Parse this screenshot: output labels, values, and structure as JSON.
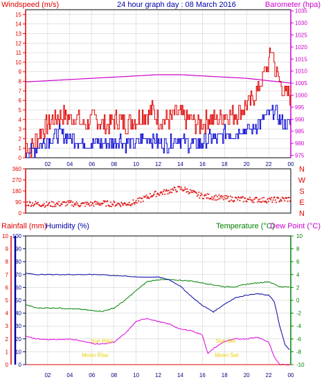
{
  "title": "24 hour graph day : 08 March 2016",
  "colors": {
    "wind": "#e00000",
    "gust": "#e00000",
    "avgwind": "#0000d0",
    "baro": "#cc00cc",
    "dir": "#e00000",
    "temp": "#008000",
    "hum": "#0000a0",
    "dew": "#dd00dd",
    "rain": "#e00000",
    "sun": "#e6d000",
    "moon": "#e6d000",
    "frame": "#000000",
    "grid": "#c8c8c8"
  },
  "chart_data": [
    {
      "type": "line",
      "name": "wind-baro",
      "left_label": "Windspeed (m/s)",
      "right_label": "Barometer (hpa)",
      "x_ticks": [
        "02",
        "04",
        "06",
        "08",
        "10",
        "12",
        "14",
        "16",
        "18",
        "20",
        "22",
        "00"
      ],
      "y_left_ticks": [
        0,
        1,
        2,
        3,
        4,
        5,
        6,
        7,
        8,
        9,
        10,
        11,
        12,
        13,
        14,
        15
      ],
      "y_left_range": [
        0,
        15.5
      ],
      "y_right_ticks": [
        975,
        980,
        985,
        990,
        995,
        1000,
        1005,
        1010,
        1015,
        1020,
        1025,
        1030,
        1035
      ],
      "y_right_range": [
        974,
        1035.5
      ],
      "x_range": [
        0,
        24
      ],
      "series": [
        {
          "role": "gust",
          "x": [
            0,
            0.5,
            1,
            1.5,
            2,
            2.5,
            3,
            3.5,
            4,
            4.5,
            5,
            5.5,
            6,
            6.5,
            7,
            7.5,
            8,
            8.5,
            9,
            9.5,
            10,
            10.5,
            11,
            11.5,
            12,
            12.5,
            13,
            13.5,
            14,
            14.5,
            15,
            15.5,
            16,
            16.5,
            17,
            17.5,
            18,
            18.5,
            19,
            19.5,
            20,
            20.5,
            21,
            21.5,
            22,
            22.3,
            22.6,
            23,
            23.5,
            24
          ],
          "values": [
            1.5,
            1,
            2,
            3,
            3.5,
            4,
            4.5,
            4.5,
            4,
            4.5,
            3.5,
            3.5,
            4,
            4,
            3.5,
            3.5,
            4,
            4,
            3.5,
            4,
            4,
            4.5,
            4.5,
            5,
            4,
            4,
            4,
            4.5,
            4.5,
            4,
            4,
            3.5,
            3.5,
            4,
            4,
            4,
            4.5,
            4.5,
            4.5,
            5,
            5.5,
            6,
            7,
            8.5,
            10,
            11.5,
            9,
            8,
            6.5,
            6.5
          ]
        },
        {
          "role": "avg",
          "x": [
            0,
            0.5,
            1,
            1.5,
            2,
            2.5,
            3,
            3.5,
            4,
            4.5,
            5,
            5.5,
            6,
            6.5,
            7,
            7.5,
            8,
            8.5,
            9,
            9.5,
            10,
            10.5,
            11,
            11.5,
            12,
            12.5,
            13,
            13.5,
            14,
            14.5,
            15,
            15.5,
            16,
            16.5,
            17,
            17.5,
            18,
            18.5,
            19,
            19.5,
            20,
            20.5,
            21,
            21.5,
            22,
            22.5,
            23,
            23.5,
            24
          ],
          "values": [
            0.5,
            0.5,
            1,
            1.5,
            2,
            2,
            2.5,
            2.5,
            2,
            2,
            1.5,
            1.5,
            1.5,
            1.5,
            1.5,
            1.5,
            1.5,
            2,
            1.5,
            1.5,
            1.5,
            2,
            2,
            2,
            1.5,
            1.5,
            1.5,
            2,
            2,
            1.5,
            1.5,
            1.5,
            1.5,
            2,
            2,
            2,
            2.5,
            2.5,
            2.5,
            3,
            3,
            3,
            3.5,
            4,
            4.5,
            5,
            4,
            3.5,
            3.5
          ]
        },
        {
          "role": "baro",
          "x": [
            0,
            2,
            4,
            6,
            8,
            10,
            12,
            14,
            16,
            18,
            20,
            22,
            24
          ],
          "values": [
            1005.5,
            1006,
            1006.5,
            1007,
            1007.5,
            1008,
            1008.5,
            1008.5,
            1008,
            1007.5,
            1007,
            1006,
            1005
          ]
        }
      ]
    },
    {
      "type": "scatter",
      "name": "wind-direction",
      "right_labels": [
        "N",
        "W",
        "S",
        "E",
        "N"
      ],
      "y_ticks": [
        0,
        90,
        180,
        270,
        360
      ],
      "y_range": [
        0,
        360
      ],
      "x_ticks": [
        "02",
        "04",
        "06",
        "08",
        "10",
        "12",
        "14",
        "16",
        "18",
        "20",
        "22",
        "00"
      ],
      "x_range": [
        0,
        24
      ],
      "series": [
        {
          "role": "dir",
          "x": [
            0,
            1,
            2,
            3,
            4,
            5,
            6,
            7,
            8,
            9,
            10,
            10.5,
            11,
            11.5,
            12,
            12.5,
            13,
            13.5,
            14,
            14.5,
            15,
            15.5,
            16,
            17,
            18,
            19,
            20,
            21,
            22,
            23,
            24
          ],
          "values": [
            80,
            75,
            70,
            75,
            80,
            70,
            75,
            80,
            75,
            75,
            90,
            110,
            130,
            150,
            160,
            170,
            180,
            190,
            200,
            190,
            170,
            150,
            140,
            130,
            120,
            115,
            110,
            110,
            105,
            110,
            115
          ]
        }
      ]
    },
    {
      "type": "line",
      "name": "temp-hum-dew-rain",
      "left_label_1": "Rainfall (mm)",
      "left_label_2": "Humidity (%)",
      "right_label_1": "Temperature (°C)",
      "right_label_2": "Dew Point (°C)",
      "rain_ticks": [
        0,
        1,
        2,
        3,
        4,
        5,
        6,
        7,
        8,
        9,
        10
      ],
      "hum_ticks": [
        0,
        10,
        20,
        30,
        40,
        50,
        60,
        70,
        80,
        90,
        100
      ],
      "temp_ticks": [
        -10,
        -8,
        -6,
        -4,
        -2,
        0,
        2,
        4,
        6,
        8,
        10
      ],
      "temp_range": [
        -10,
        10
      ],
      "hum_range": [
        0,
        100
      ],
      "x_ticks": [
        "02",
        "04",
        "06",
        "08",
        "10",
        "12",
        "14",
        "16",
        "18",
        "20",
        "22",
        "00"
      ],
      "x_range": [
        0,
        24
      ],
      "events": [
        {
          "label": "Sun Rise",
          "time": 6.9,
          "level": 0.17
        },
        {
          "label": "Moon Rise",
          "time": 6.3,
          "level": 0.06
        },
        {
          "label": "Sun Set",
          "time": 18.1,
          "level": 0.17
        },
        {
          "label": "Moon Set",
          "time": 18.2,
          "level": 0.06
        }
      ],
      "series": [
        {
          "role": "hum",
          "x": [
            0,
            1,
            2,
            3,
            4,
            5,
            6,
            7,
            8,
            9,
            10,
            11,
            12,
            13,
            14,
            15,
            16,
            17,
            18,
            19,
            20,
            21,
            22,
            22.5,
            23,
            23.5,
            24
          ],
          "values": [
            71,
            70,
            70,
            70,
            70,
            70,
            70,
            70,
            69,
            69,
            68,
            68,
            68,
            66,
            61,
            53,
            46,
            41,
            47,
            52,
            54,
            55,
            54,
            49,
            30,
            15,
            11
          ]
        },
        {
          "role": "temp",
          "x": [
            0,
            1,
            2,
            3,
            4,
            5,
            6,
            7,
            8,
            9,
            10,
            11,
            12,
            13,
            14,
            15,
            16,
            17,
            18,
            19,
            20,
            21,
            22,
            23,
            24
          ],
          "values": [
            -0.7,
            -1.2,
            -1.2,
            -1.2,
            -1.3,
            -1.4,
            -1.6,
            -1.7,
            -1.2,
            0.0,
            1.5,
            2.9,
            3.2,
            3.2,
            3.1,
            3.0,
            2.7,
            2.4,
            2.1,
            2.1,
            2.5,
            2.7,
            2.9,
            2.1,
            2.1
          ]
        },
        {
          "role": "dew",
          "x": [
            0,
            1,
            2,
            3,
            4,
            5,
            6,
            7,
            8,
            9,
            10,
            11,
            12,
            13,
            14,
            15,
            16,
            16.5,
            17,
            18,
            19,
            20,
            21,
            22,
            22.5,
            23,
            24
          ],
          "values": [
            -5.6,
            -6.0,
            -6.1,
            -6.1,
            -6.0,
            -6.3,
            -6.7,
            -6.8,
            -6.5,
            -5.2,
            -3.3,
            -2.8,
            -3.3,
            -3.7,
            -4.5,
            -4.7,
            -5.4,
            -8.3,
            -7.5,
            -6.4,
            -6.0,
            -6.0,
            -5.7,
            -6.5,
            -8.8,
            -10,
            -10
          ]
        },
        {
          "role": "rain",
          "x": [
            0,
            24
          ],
          "values": [
            0,
            0
          ]
        }
      ]
    }
  ]
}
